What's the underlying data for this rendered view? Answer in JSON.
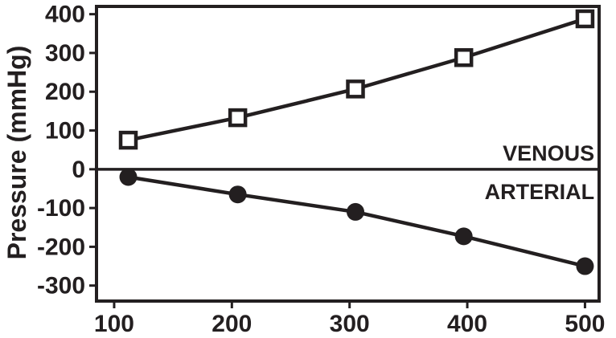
{
  "chart_data": {
    "type": "line",
    "title": "",
    "xlabel": "",
    "ylabel": "Pressure (mmHg)",
    "xlim": [
      85,
      512
    ],
    "ylim": [
      -340,
      420
    ],
    "x_ticks": [
      100,
      200,
      300,
      400,
      500
    ],
    "y_ticks": [
      400,
      300,
      200,
      100,
      0,
      -100,
      -200,
      -300
    ],
    "grid": false,
    "zero_line": true,
    "legend_position": "inline-right",
    "colors": {
      "line": "#231f20",
      "marker_open_fill": "#ffffff",
      "background": "#ffffff"
    },
    "series": [
      {
        "name": "VENOUS",
        "marker": "square-open",
        "x": [
          112,
          205,
          305,
          397,
          500
        ],
        "values": [
          75,
          133,
          207,
          288,
          388
        ],
        "label": {
          "x": 508,
          "y": 22
        }
      },
      {
        "name": "ARTERIAL",
        "marker": "circle-filled",
        "x": [
          112,
          205,
          305,
          397,
          500
        ],
        "values": [
          -20,
          -65,
          -110,
          -173,
          -250
        ],
        "label": {
          "x": 508,
          "y": -77
        }
      }
    ]
  }
}
